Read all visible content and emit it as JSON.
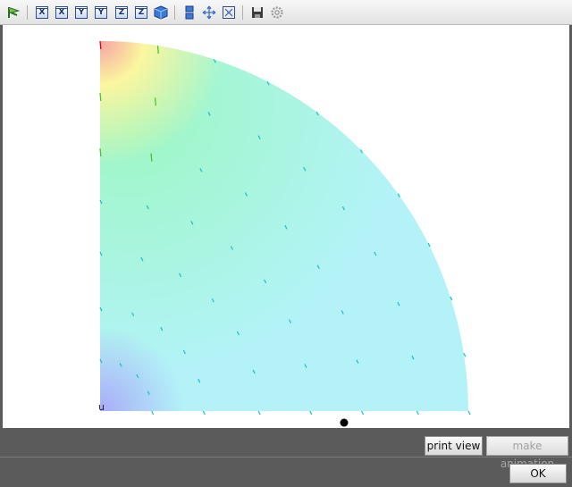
{
  "toolbar": {
    "buttons": [
      {
        "name": "select-pointer-icon",
        "kind": "pointer"
      },
      {
        "name": "view-x-plus-icon",
        "kind": "axis",
        "label": "X"
      },
      {
        "name": "view-x-minus-icon",
        "kind": "axis",
        "label": "X"
      },
      {
        "name": "view-y-plus-icon",
        "kind": "axis",
        "label": "Y"
      },
      {
        "name": "view-y-minus-icon",
        "kind": "axis",
        "label": "Y"
      },
      {
        "name": "view-z-plus-icon",
        "kind": "axis",
        "label": "Z"
      },
      {
        "name": "view-z-minus-icon",
        "kind": "axis",
        "label": "Z"
      },
      {
        "name": "isometric-view-icon",
        "kind": "cube"
      },
      {
        "name": "section-view-icon",
        "kind": "section"
      },
      {
        "name": "move-icon",
        "kind": "move"
      },
      {
        "name": "fit-view-icon",
        "kind": "fit"
      },
      {
        "name": "save-icon",
        "kind": "save"
      },
      {
        "name": "settings-icon",
        "kind": "gear"
      }
    ]
  },
  "viewport": {
    "corner_label": "u",
    "colors": {
      "base": "#b3f3f8",
      "hot": "#f7a3a3",
      "warm": "#fbf6a0",
      "mid": "#9cf7c0",
      "cold": "#a9acf7",
      "max_arrow": "#e00000"
    }
  },
  "buttons": {
    "print_view": "print view",
    "make_animation": "make animation",
    "ok": "OK"
  }
}
